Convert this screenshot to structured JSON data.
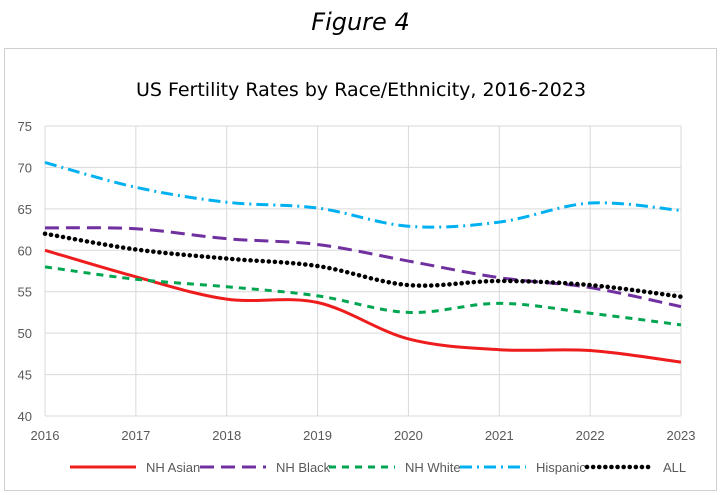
{
  "figure_label": "Figure 4",
  "chart_data": {
    "type": "line",
    "title": "US Fertility Rates by Race/Ethnicity, 2016-2023",
    "xlabel": "",
    "ylabel": "",
    "x": [
      2016,
      2017,
      2018,
      2019,
      2020,
      2021,
      2022,
      2023
    ],
    "x_tick_labels": [
      "2016",
      "2017",
      "2018",
      "2019",
      "2020",
      "2021",
      "2022",
      "2023"
    ],
    "ylim": [
      40,
      75
    ],
    "y_ticks": [
      40,
      45,
      50,
      55,
      60,
      65,
      70,
      75
    ],
    "y_tick_labels": [
      "40",
      "45",
      "50",
      "55",
      "60",
      "65",
      "70",
      "75"
    ],
    "grid": "horizontal",
    "legend_position": "bottom",
    "series": [
      {
        "name": "NH Asian",
        "color": "#ee1c1c",
        "style": "solid",
        "values": [
          60.0,
          56.8,
          54.1,
          53.7,
          49.3,
          48.0,
          47.9,
          46.5
        ]
      },
      {
        "name": "NH Black",
        "color": "#7030a0",
        "style": "dash",
        "values": [
          62.7,
          62.6,
          61.4,
          60.7,
          58.7,
          56.7,
          55.5,
          53.2
        ]
      },
      {
        "name": "NH White",
        "color": "#00a550",
        "style": "short-dash",
        "values": [
          58.0,
          56.5,
          55.6,
          54.5,
          52.5,
          53.6,
          52.4,
          51.0
        ]
      },
      {
        "name": "Hispanic",
        "color": "#00b0f0",
        "style": "dash-dot",
        "values": [
          70.6,
          67.6,
          65.8,
          65.1,
          62.9,
          63.4,
          65.7,
          64.8
        ]
      },
      {
        "name": "ALL",
        "color": "#000000",
        "style": "dot",
        "values": [
          62.0,
          60.1,
          59.0,
          58.1,
          55.8,
          56.3,
          55.8,
          54.4
        ]
      }
    ]
  }
}
